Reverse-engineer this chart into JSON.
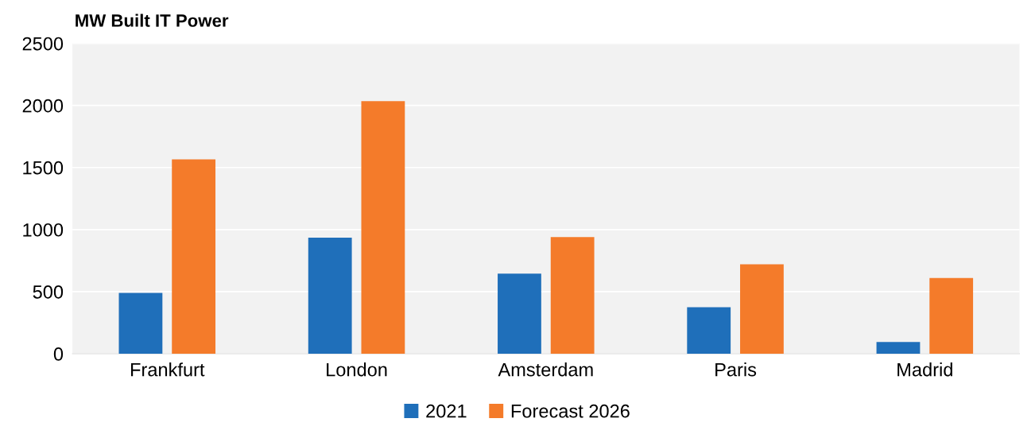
{
  "chart_data": {
    "type": "bar",
    "title": "MW Built IT Power",
    "categories": [
      "Frankfurt",
      "London",
      "Amsterdam",
      "Paris",
      "Madrid"
    ],
    "series": [
      {
        "name": "2021",
        "color": "#1f6fba",
        "values": [
          490,
          935,
          645,
          375,
          95
        ]
      },
      {
        "name": "Forecast 2026",
        "color": "#f47b2a",
        "values": [
          1565,
          2035,
          940,
          720,
          610
        ]
      }
    ],
    "ylim": [
      0,
      2500
    ],
    "yticks": [
      0,
      500,
      1000,
      1500,
      2000,
      2500
    ],
    "grid": "y",
    "legend": "bottom"
  }
}
